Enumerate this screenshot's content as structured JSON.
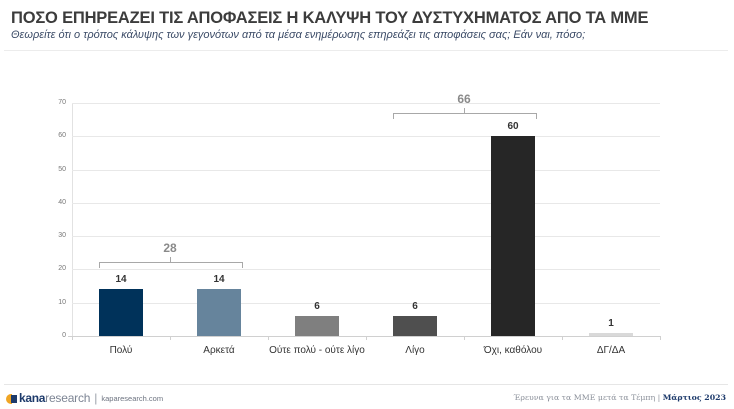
{
  "header": {
    "title": "ΠΟΣΟ ΕΠΗΡΕΑΖΕΙ ΤΙΣ ΑΠΟΦΑΣΕΙΣ Η ΚΑΛΥΨΗ ΤΟΥ ΔΥΣΤΥΧΗΜΑΤΟΣ ΑΠΟ ΤΑ ΜΜΕ",
    "subtitle": "Θεωρείτε ότι ο τρόπος κάλυψης των γεγονότων από τα μέσα ενημέρωσης επηρεάζει τις αποφάσεις σας; Εάν ναι, πόσο;"
  },
  "chart_data": {
    "type": "bar",
    "title": "ΠΟΣΟ ΕΠΗΡΕΑΖΕΙ ΤΙΣ ΑΠΟΦΑΣΕΙΣ Η ΚΑΛΥΨΗ ΤΟΥ ΔΥΣΤΥΧΗΜΑΤΟΣ ΑΠΟ ΤΑ ΜΜΕ",
    "subtitle": "Θεωρείτε ότι ο τρόπος κάλυψης των γεγονότων από τα μέσα ενημέρωσης επηρεάζει τις αποφάσεις σας; Εάν ναι, πόσο;",
    "categories": [
      "Πολύ",
      "Αρκετά",
      "Ούτε πολύ - ούτε λίγο",
      "Λίγο",
      "Όχι, καθόλου",
      "ΔΓ/ΔΑ"
    ],
    "values": [
      14,
      14,
      6,
      6,
      60,
      1
    ],
    "value_labels": [
      "14",
      "14",
      "6",
      "6",
      "60",
      "1"
    ],
    "colors": [
      "#00325a",
      "#66849c",
      "#7f7f7f",
      "#4f4f4f",
      "#262626",
      "#d9d9d9"
    ],
    "xlabel": "",
    "ylabel": "",
    "ylim": [
      0,
      70
    ],
    "yticks": [
      "0",
      "10",
      "20",
      "30",
      "40",
      "50",
      "60",
      "70"
    ],
    "grid": true,
    "legend": null,
    "annotations": [
      {
        "label": "28",
        "spans": [
          "Πολύ",
          "Αρκετά"
        ]
      },
      {
        "label": "66",
        "spans": [
          "Λίγο",
          "Όχι, καθόλου"
        ]
      }
    ]
  },
  "footer": {
    "brand_bold": "kana",
    "brand_light": "research",
    "separator": "|",
    "url": "kaparesearch.com",
    "survey_label": "Έρευνα για τα ΜΜΕ μετά τα Τέμπη | ",
    "date": "Μάρτιος 2023"
  }
}
